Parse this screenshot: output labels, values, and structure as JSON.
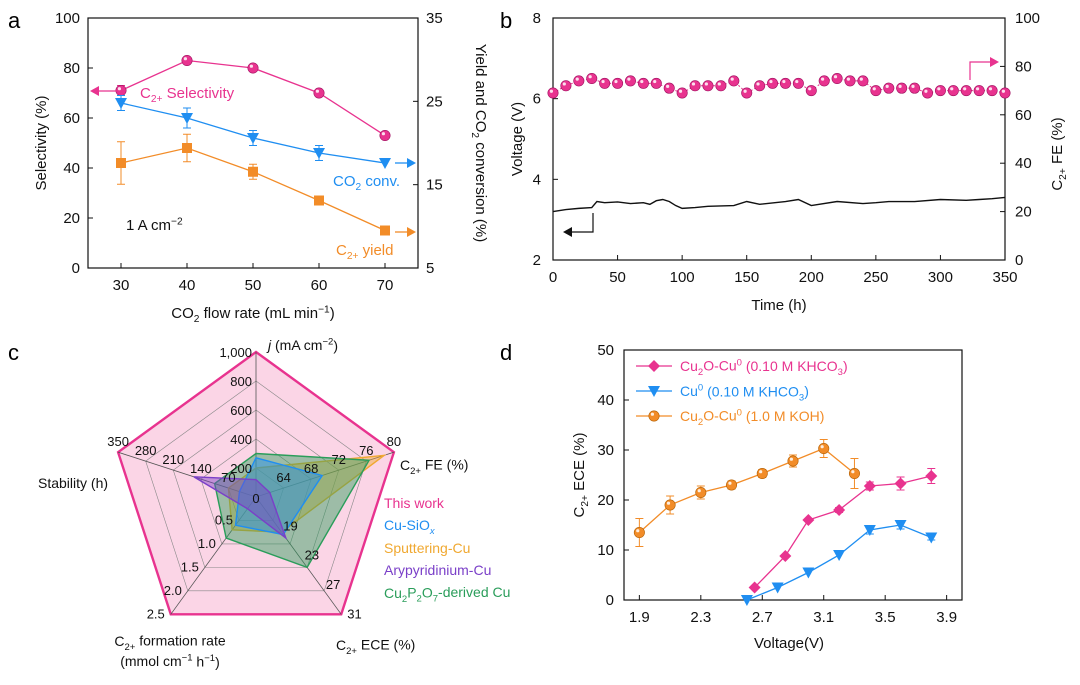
{
  "colors": {
    "pink": "#e8338f",
    "blue": "#1f8ef1",
    "orange": "#f28c28",
    "purple": "#7a3fc8",
    "green": "#2a9d5a",
    "sputter": "#f0a830",
    "black": "#222222",
    "radarFill": "#fbd5e6"
  },
  "chart_data": [
    {
      "panel": "a",
      "type": "line",
      "x": [
        30,
        40,
        50,
        60,
        70
      ],
      "xlabel": "CO2 flow rate (mL min−1)",
      "ylabel_left": "Selectivity (%)",
      "ylabel_right": "Yield and CO2 conversion (%)",
      "xlim": [
        25,
        75
      ],
      "ylim_left": [
        0,
        100
      ],
      "ylim_right": [
        5,
        35
      ],
      "xticks": [
        "30",
        "40",
        "50",
        "60",
        "70"
      ],
      "yticks_left": [
        "0",
        "20",
        "40",
        "60",
        "80",
        "100"
      ],
      "yticks_right": [
        "5",
        "15",
        "25",
        "35"
      ],
      "series": [
        {
          "name": "C2+ Selectivity",
          "axis": "left",
          "values": [
            71,
            83,
            80,
            70,
            53
          ],
          "err": [
            2,
            0,
            0,
            0,
            0
          ],
          "color": "pink"
        },
        {
          "name": "CO2 conv.",
          "axis": "left",
          "values": [
            66,
            60,
            52,
            46,
            42
          ],
          "err": [
            3,
            4,
            3,
            3,
            0
          ],
          "color": "blue"
        },
        {
          "name": "C2+ yield",
          "axis": "left",
          "values": [
            42,
            48,
            38.5,
            27,
            15
          ],
          "err": [
            8.5,
            5.5,
            3,
            1,
            0
          ],
          "color": "orange"
        }
      ],
      "annotations": {
        "selectivity": "C2+ Selectivity",
        "conv": "CO2 conv.",
        "yield": "C2+ yield",
        "current": "1 A cm−2"
      }
    },
    {
      "panel": "b",
      "type": "line",
      "xlabel": "Time (h)",
      "ylabel_left": "Voltage (V)",
      "ylabel_right": "C2+ FE (%)",
      "xlim": [
        0,
        350
      ],
      "ylim_left": [
        2,
        8
      ],
      "ylim_right": [
        0,
        100
      ],
      "xticks": [
        "0",
        "50",
        "100",
        "150",
        "200",
        "250",
        "300",
        "350"
      ],
      "yticks_left": [
        "2",
        "4",
        "6",
        "8"
      ],
      "yticks_right": [
        "0",
        "20",
        "40",
        "60",
        "80",
        "100"
      ],
      "series": [
        {
          "name": "C2+ FE",
          "axis": "right",
          "x": [
            0,
            10,
            20,
            30,
            40,
            50,
            60,
            70,
            80,
            90,
            100,
            110,
            120,
            130,
            140,
            150,
            160,
            170,
            180,
            190,
            200,
            210,
            220,
            230,
            240,
            250,
            260,
            270,
            280,
            290,
            300,
            310,
            320,
            330,
            340,
            350
          ],
          "values": [
            69,
            72,
            74,
            75,
            73,
            73,
            74,
            73,
            73,
            71,
            69,
            72,
            72,
            72,
            74,
            69,
            72,
            73,
            73,
            73,
            70,
            74,
            75,
            74,
            74,
            70,
            71,
            71,
            71,
            69,
            70,
            70,
            70,
            70,
            70,
            69
          ]
        },
        {
          "name": "Voltage",
          "axis": "left",
          "x": [
            0,
            10,
            20,
            30,
            34,
            40,
            50,
            60,
            70,
            75,
            80,
            85,
            90,
            95,
            100,
            110,
            120,
            140,
            150,
            160,
            180,
            190,
            200,
            220,
            240,
            250,
            260,
            280,
            300,
            320,
            330,
            340,
            350
          ],
          "values": [
            3.2,
            3.25,
            3.28,
            3.3,
            3.45,
            3.42,
            3.44,
            3.4,
            3.42,
            3.38,
            3.47,
            3.5,
            3.45,
            3.35,
            3.28,
            3.3,
            3.33,
            3.35,
            3.45,
            3.38,
            3.45,
            3.5,
            3.35,
            3.45,
            3.4,
            3.42,
            3.45,
            3.45,
            3.5,
            3.48,
            3.5,
            3.52,
            3.55
          ]
        }
      ]
    },
    {
      "panel": "c",
      "type": "radar",
      "axes": [
        {
          "label": "j",
          "unit": "(mA cm−2)",
          "ticks": [
            "200",
            "400",
            "600",
            "800",
            "1,000"
          ]
        },
        {
          "label": "C2+ FE (%)",
          "ticks": [
            "64",
            "68",
            "72",
            "76",
            "80"
          ]
        },
        {
          "label": "C2+ ECE (%)",
          "ticks": [
            "19",
            "23",
            "27",
            "31"
          ]
        },
        {
          "label": "C2+ formation rate",
          "label2": "(mmol cm−1 h−1)",
          "ticks": [
            "0.5",
            "1.0",
            "1.5",
            "2.0",
            "2.5"
          ]
        },
        {
          "label": "Stability (h)",
          "ticks": [
            "70",
            "140",
            "210",
            "280",
            "350"
          ]
        }
      ],
      "center_label": "0",
      "series": [
        {
          "name": "This work",
          "color": "pink",
          "r": [
            1.0,
            1.0,
            1.0,
            1.0,
            1.0
          ]
        },
        {
          "name": "Cu-SiOx",
          "color": "blue",
          "r": [
            0.27,
            0.48,
            0.32,
            0.24,
            0.12
          ]
        },
        {
          "name": "Sputtering-Cu",
          "color": "sputter",
          "r": [
            0.2,
            0.93,
            0.3,
            0.28,
            0.2
          ]
        },
        {
          "name": "Arypyridinium-Cu",
          "color": "purple",
          "r": [
            0.12,
            0.1,
            0.35,
            0.1,
            0.45
          ]
        },
        {
          "name": "Cu2P2O7-derived Cu",
          "color": "green",
          "r": [
            0.3,
            0.82,
            0.6,
            0.35,
            0.3
          ]
        }
      ],
      "legend": [
        "This work",
        "Cu-SiOx",
        "Sputtering-Cu",
        "Arypyridinium-Cu",
        "Cu2P2O7-derived Cu"
      ]
    },
    {
      "panel": "d",
      "type": "line",
      "xlabel": "Voltage(V)",
      "ylabel": "C2+ ECE (%)",
      "xlim": [
        1.8,
        4.0
      ],
      "ylim": [
        0,
        50
      ],
      "xticks": [
        "1.9",
        "2.3",
        "2.7",
        "3.1",
        "3.5",
        "3.9"
      ],
      "yticks": [
        "0",
        "10",
        "20",
        "30",
        "40",
        "50"
      ],
      "series": [
        {
          "name": "Cu2O-Cu0 (0.10 M KHCO3)",
          "color": "pink",
          "x": [
            2.65,
            2.85,
            3.0,
            3.2,
            3.4,
            3.6,
            3.8
          ],
          "values": [
            2.5,
            8.8,
            16,
            18,
            22.8,
            23.3,
            24.8
          ],
          "err": [
            0,
            0,
            0,
            0.5,
            0.8,
            1.3,
            1.5
          ]
        },
        {
          "name": "Cu0 (0.10 M KHCO3)",
          "color": "blue",
          "x": [
            2.6,
            2.8,
            3.0,
            3.2,
            3.4,
            3.6,
            3.8
          ],
          "values": [
            0,
            2.5,
            5.5,
            9,
            14,
            15,
            12.5
          ],
          "err": [
            0,
            0,
            0,
            0,
            0.8,
            0.8,
            0.5
          ]
        },
        {
          "name": "Cu2O-Cu0 (1.0 M KOH)",
          "color": "orange",
          "x": [
            1.9,
            2.1,
            2.3,
            2.5,
            2.7,
            2.9,
            3.1,
            3.3
          ],
          "values": [
            13.5,
            19,
            21.5,
            23,
            25.3,
            27.8,
            30.3,
            25.3
          ],
          "err": [
            2.8,
            1.8,
            1.3,
            0.8,
            0.8,
            1.2,
            1.8,
            3
          ]
        }
      ]
    }
  ],
  "labels": {
    "panel_a": "a",
    "panel_b": "b",
    "panel_c": "c",
    "panel_d": "d",
    "a_title_x": "CO",
    "legend_c": [
      "This work",
      "Cu-SiO",
      "Sputtering-Cu",
      "Arypyridinium-Cu",
      "Cu",
      "-derived Cu"
    ],
    "d_legend": [
      "Cu",
      "O-Cu",
      "(0.10 M KHCO",
      "Cu",
      "(0.10 M KHCO",
      "Cu",
      "O-Cu",
      "(1.0 M KOH)"
    ]
  }
}
